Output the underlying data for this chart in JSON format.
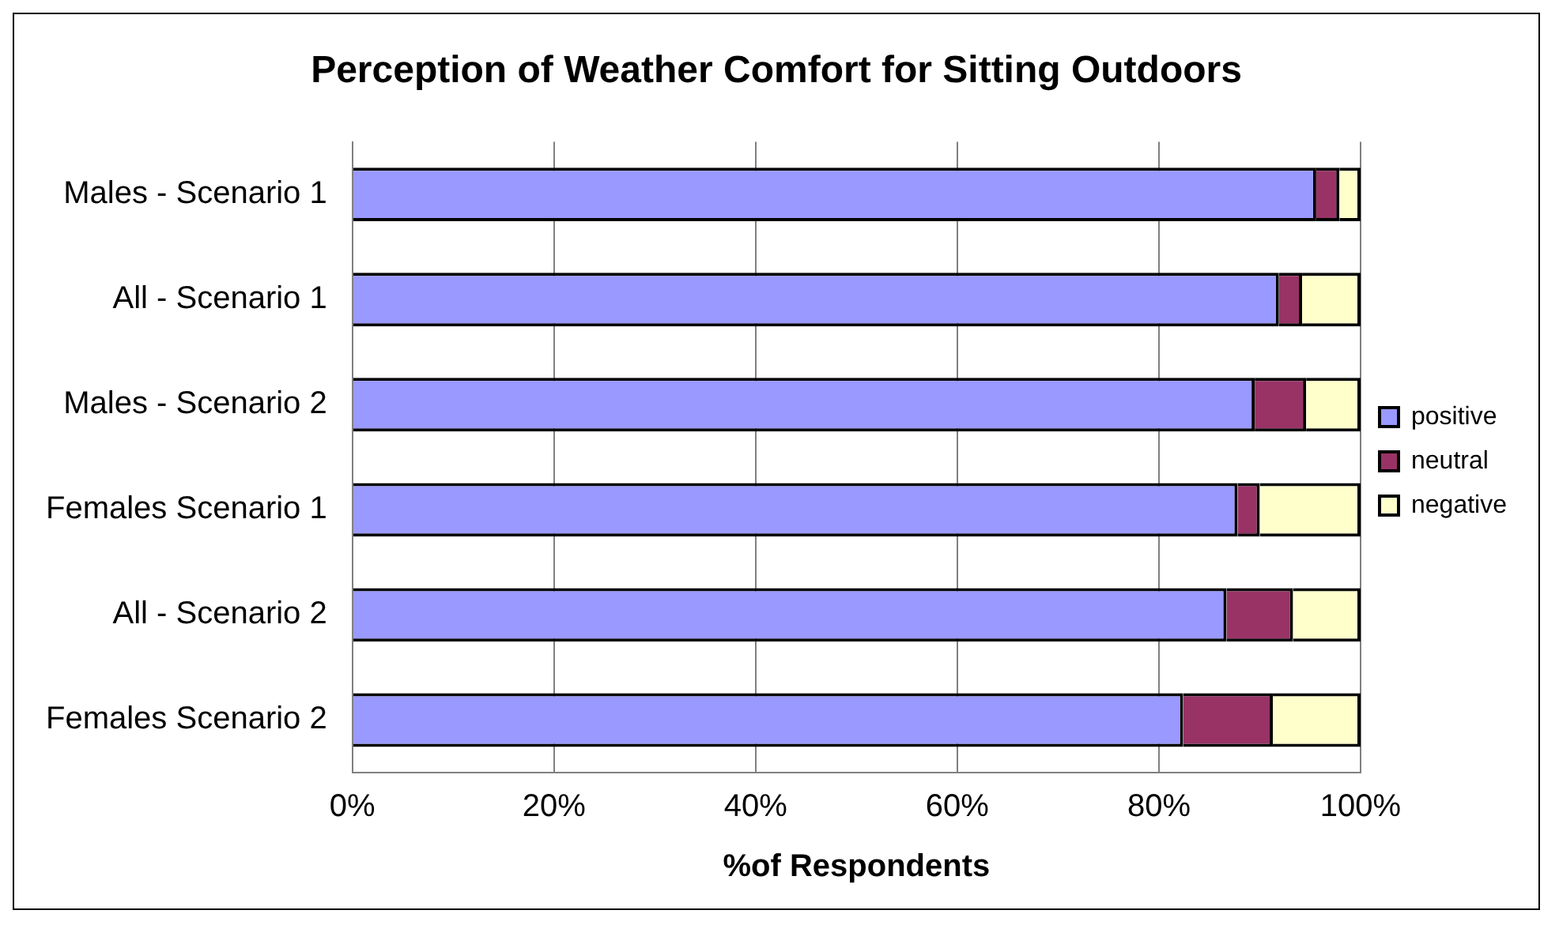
{
  "chart_data": {
    "type": "bar",
    "orientation": "horizontal",
    "stacked": true,
    "title": "Perception of Weather Comfort for Sitting Outdoors",
    "xlabel": "%of Respondents",
    "categories": [
      "Males - Scenario 1",
      "All - Scenario 1",
      "Males - Scenario 2",
      "Females Scenario 1",
      "All - Scenario 2",
      "Females Scenario 2"
    ],
    "series": [
      {
        "name": "positive",
        "color": "#9999ff",
        "values": [
          95.6,
          91.9,
          89.5,
          87.8,
          86.7,
          82.4
        ]
      },
      {
        "name": "neutral",
        "color": "#993366",
        "values": [
          2.3,
          2.3,
          5.1,
          2.2,
          6.6,
          8.9
        ]
      },
      {
        "name": "negative",
        "color": "#ffffcc",
        "values": [
          2.1,
          5.8,
          5.4,
          10,
          6.7,
          8.7
        ]
      }
    ],
    "xlim": [
      0,
      100
    ],
    "xticks": [
      {
        "value": 0,
        "label": "0%"
      },
      {
        "value": 20,
        "label": "20%"
      },
      {
        "value": 40,
        "label": "40%"
      },
      {
        "value": 60,
        "label": "60%"
      },
      {
        "value": 80,
        "label": "80%"
      },
      {
        "value": 100,
        "label": "100%"
      }
    ],
    "grid": "x",
    "legend": "right"
  }
}
